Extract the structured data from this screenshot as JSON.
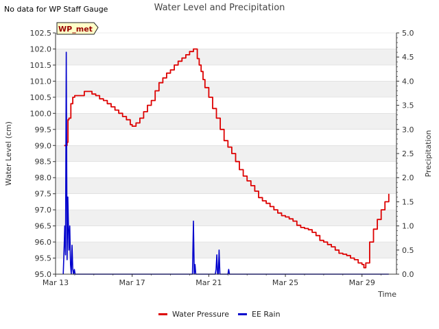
{
  "note": "No data for WP Staff Gauge",
  "colors": {
    "water_pressure": "#dd0000",
    "ee_rain": "#0000cc",
    "band": "#f0f0f0",
    "grid": "#d8d8d8"
  },
  "chart_data": {
    "type": "line",
    "title": "Water Level and Precipitation",
    "xlabel": "Time",
    "ylabel": "Water Level (cm)",
    "y2label": "Precipitation",
    "station_label": "WP_met",
    "x_ticks": [
      "Mar 13",
      "Mar 17",
      "Mar 21",
      "Mar 25",
      "Mar 29"
    ],
    "x_tick_days": [
      13,
      17,
      21,
      25,
      29
    ],
    "xlim": [
      13,
      30.8
    ],
    "ylim": [
      95.0,
      102.5
    ],
    "y_ticks": [
      "95.0",
      "95.5",
      "96.0",
      "96.5",
      "97.0",
      "97.5",
      "98.0",
      "98.5",
      "99.0",
      "99.5",
      "100.0",
      "100.5",
      "101.0",
      "101.5",
      "102.0",
      "102.5"
    ],
    "y2lim": [
      0,
      5
    ],
    "y2_ticks": [
      "0.0",
      "0.5",
      "1.0",
      "1.5",
      "2.0",
      "2.5",
      "3.0",
      "3.5",
      "4.0",
      "4.5",
      "5.0"
    ],
    "grid_banding": true,
    "legend_position": "bottom",
    "series": [
      {
        "name": "Water Pressure",
        "axis": "left",
        "x": [
          13.45,
          13.6,
          13.65,
          13.7,
          13.8,
          13.9,
          14.0,
          14.1,
          14.3,
          14.5,
          14.7,
          14.9,
          15.1,
          15.3,
          15.5,
          15.7,
          15.9,
          16.1,
          16.3,
          16.5,
          16.7,
          16.9,
          17.0,
          17.2,
          17.4,
          17.6,
          17.8,
          18.0,
          18.2,
          18.4,
          18.6,
          18.8,
          19.0,
          19.2,
          19.4,
          19.6,
          19.8,
          20.0,
          20.2,
          20.4,
          20.5,
          20.6,
          20.7,
          20.8,
          21.0,
          21.2,
          21.4,
          21.6,
          21.8,
          22.0,
          22.2,
          22.4,
          22.6,
          22.8,
          23.0,
          23.2,
          23.4,
          23.6,
          23.8,
          24.0,
          24.2,
          24.4,
          24.6,
          24.8,
          25.0,
          25.2,
          25.4,
          25.6,
          25.8,
          26.0,
          26.2,
          26.4,
          26.6,
          26.8,
          27.0,
          27.2,
          27.4,
          27.6,
          27.8,
          28.0,
          28.2,
          28.4,
          28.6,
          28.8,
          29.0,
          29.1,
          29.2,
          29.4,
          29.6,
          29.8,
          30.0,
          30.2,
          30.4
        ],
        "y": [
          99.0,
          99.1,
          99.8,
          99.85,
          100.3,
          100.5,
          100.55,
          100.55,
          100.55,
          100.68,
          100.68,
          100.6,
          100.55,
          100.45,
          100.4,
          100.3,
          100.2,
          100.1,
          100.0,
          99.9,
          99.8,
          99.65,
          99.6,
          99.7,
          99.85,
          100.05,
          100.25,
          100.4,
          100.7,
          100.95,
          101.1,
          101.25,
          101.35,
          101.5,
          101.62,
          101.72,
          101.82,
          101.92,
          102.0,
          101.7,
          101.5,
          101.3,
          101.05,
          100.8,
          100.5,
          100.15,
          99.85,
          99.5,
          99.15,
          98.95,
          98.75,
          98.5,
          98.25,
          98.05,
          97.9,
          97.75,
          97.58,
          97.38,
          97.28,
          97.2,
          97.1,
          97.0,
          96.9,
          96.82,
          96.78,
          96.72,
          96.65,
          96.52,
          96.45,
          96.42,
          96.38,
          96.3,
          96.2,
          96.05,
          96.0,
          95.92,
          95.85,
          95.75,
          95.65,
          95.62,
          95.58,
          95.5,
          95.45,
          95.35,
          95.3,
          95.2,
          95.35,
          96.0,
          96.4,
          96.7,
          97.0,
          97.25,
          97.5
        ]
      },
      {
        "name": "EE Rain",
        "axis": "right",
        "x": [
          13.4,
          13.45,
          13.48,
          13.52,
          13.56,
          13.6,
          13.64,
          13.7,
          13.74,
          13.78,
          13.82,
          13.86,
          13.9,
          13.94,
          13.98,
          14.02,
          14.06,
          14.1,
          14.14,
          14.18,
          14.22,
          14.26,
          14.3,
          14.34,
          14.38,
          14.42,
          14.46,
          14.5,
          20.15,
          20.2,
          20.24,
          20.28,
          20.32,
          20.36,
          20.4,
          21.3,
          21.34,
          21.38,
          21.42,
          21.46,
          21.5,
          21.54,
          21.58,
          22.0,
          22.04,
          22.08,
          22.12
        ],
        "y": [
          0.0,
          0.6,
          1.0,
          0.4,
          4.6,
          0.3,
          1.6,
          0.5,
          1.0,
          0.2,
          0.0,
          0.6,
          0.1,
          0.0,
          0.1,
          0.0,
          0.0,
          0.0,
          0.0,
          0.0,
          0.0,
          0.0,
          0.0,
          0.0,
          0.0,
          0.0,
          0.0,
          0.0,
          0.0,
          1.1,
          0.0,
          0.2,
          0.0,
          0.0,
          0.0,
          0.0,
          0.0,
          0.1,
          0.4,
          0.0,
          0.0,
          0.5,
          0.0,
          0.0,
          0.1,
          0.0,
          0.0
        ]
      }
    ]
  }
}
